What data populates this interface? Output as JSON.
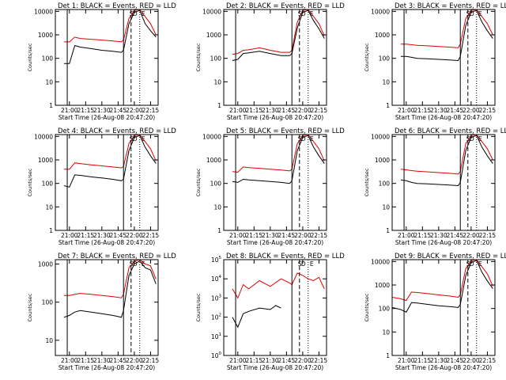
{
  "figure": {
    "title_template": "Det {n}: BLACK = Events, RED = LLD",
    "xlabel": "Start Time (26-Aug-08 20:47:20)",
    "ylabel": "Counts/sec",
    "series_colors": {
      "events": "#000000",
      "lld": "#e00000"
    },
    "marker_labels": [
      "S",
      "D",
      "E"
    ]
  },
  "chart_data": [
    {
      "type": "line",
      "det": "1",
      "title": "Det 1: BLACK = Events, RED = LLD",
      "xlabel": "Start Time (26-Aug-08 20:47:20)",
      "ylabel": "Counts/sec",
      "xticks": [
        "21:00",
        "21:15",
        "21:30",
        "21:45",
        "22:00",
        "22:15"
      ],
      "yticks": [
        "1",
        "10",
        "100",
        "1000",
        "10000"
      ],
      "yscale": "log",
      "ylim": [
        1,
        12000
      ],
      "series": [
        {
          "name": "Events",
          "color": "#000000",
          "x": [
            "20:55",
            "21:00",
            "21:05",
            "21:10",
            "21:20",
            "21:30",
            "21:40",
            "21:48",
            "21:50",
            "21:55",
            "22:00",
            "22:05",
            "22:10",
            "22:15",
            "22:20"
          ],
          "values": [
            60,
            60,
            350,
            300,
            260,
            220,
            200,
            180,
            220,
            3000,
            9000,
            11000,
            3000,
            1500,
            800
          ]
        },
        {
          "name": "LLD",
          "color": "#e00000",
          "x": [
            "20:55",
            "21:00",
            "21:05",
            "21:10",
            "21:20",
            "21:30",
            "21:40",
            "21:48",
            "21:50",
            "21:55",
            "22:00",
            "22:05",
            "22:10",
            "22:15",
            "22:20"
          ],
          "values": [
            500,
            500,
            800,
            700,
            650,
            600,
            550,
            500,
            600,
            5000,
            11000,
            12000,
            6000,
            3000,
            1000
          ]
        }
      ]
    },
    {
      "type": "line",
      "det": "2",
      "title": "Det 2: BLACK = Events, RED = LLD",
      "xlabel": "Start Time (26-Aug-08 20:47:20)",
      "ylabel": "Counts/sec",
      "xticks": [
        "21:00",
        "21:15",
        "21:30",
        "21:45",
        "22:00",
        "22:15"
      ],
      "yticks": [
        "1",
        "10",
        "100",
        "1000",
        "10000"
      ],
      "yscale": "log",
      "ylim": [
        1,
        12000
      ],
      "series": [
        {
          "name": "Events",
          "color": "#000000",
          "x": [
            "20:55",
            "21:00",
            "21:05",
            "21:10",
            "21:20",
            "21:30",
            "21:40",
            "21:48",
            "21:50",
            "21:55",
            "22:00",
            "22:05",
            "22:10",
            "22:15",
            "22:20"
          ],
          "values": [
            80,
            90,
            160,
            170,
            200,
            160,
            130,
            130,
            160,
            2000,
            9000,
            11000,
            4000,
            1800,
            700
          ]
        },
        {
          "name": "LLD",
          "color": "#e00000",
          "x": [
            "20:55",
            "21:00",
            "21:05",
            "21:10",
            "21:20",
            "21:30",
            "21:40",
            "21:48",
            "21:50",
            "21:55",
            "22:00",
            "22:05",
            "22:10",
            "22:15",
            "22:20"
          ],
          "values": [
            150,
            160,
            220,
            230,
            280,
            220,
            180,
            180,
            220,
            3500,
            11000,
            12000,
            6000,
            3000,
            900
          ]
        }
      ]
    },
    {
      "type": "line",
      "det": "3",
      "title": "Det 3: BLACK = Events, RED = LLD",
      "xlabel": "Start Time (26-Aug-08 20:47:20)",
      "ylabel": "Counts/sec",
      "xticks": [
        "21:00",
        "21:15",
        "21:30",
        "21:45",
        "22:00",
        "22:15"
      ],
      "yticks": [
        "1",
        "10",
        "100",
        "1000",
        "10000"
      ],
      "yscale": "log",
      "ylim": [
        1,
        12000
      ],
      "series": [
        {
          "name": "Events",
          "color": "#000000",
          "x": [
            "20:55",
            "21:00",
            "21:05",
            "21:10",
            "21:20",
            "21:30",
            "21:40",
            "21:48",
            "21:50",
            "21:55",
            "22:00",
            "22:05",
            "22:10",
            "22:15",
            "22:20"
          ],
          "values": [
            120,
            120,
            110,
            100,
            95,
            90,
            85,
            80,
            120,
            2500,
            9000,
            11000,
            3500,
            1500,
            700
          ]
        },
        {
          "name": "LLD",
          "color": "#e00000",
          "x": [
            "20:55",
            "21:00",
            "21:05",
            "21:10",
            "21:20",
            "21:30",
            "21:40",
            "21:48",
            "21:50",
            "21:55",
            "22:00",
            "22:05",
            "22:10",
            "22:15",
            "22:20"
          ],
          "values": [
            400,
            400,
            380,
            360,
            340,
            320,
            300,
            280,
            400,
            5000,
            11000,
            12000,
            6000,
            3000,
            1000
          ]
        }
      ]
    },
    {
      "type": "line",
      "det": "4",
      "title": "Det 4: BLACK = Events, RED = LLD",
      "xlabel": "Start Time (26-Aug-08 20:47:20)",
      "ylabel": "Counts/sec",
      "xticks": [
        "21:00",
        "21:15",
        "21:30",
        "21:45",
        "22:00",
        "22:15"
      ],
      "yticks": [
        "1",
        "10",
        "100",
        "1000",
        "10000"
      ],
      "yscale": "log",
      "ylim": [
        1,
        12000
      ],
      "series": [
        {
          "name": "Events",
          "color": "#000000",
          "x": [
            "20:55",
            "21:00",
            "21:05",
            "21:10",
            "21:20",
            "21:30",
            "21:40",
            "21:48",
            "21:50",
            "21:55",
            "22:00",
            "22:05",
            "22:10",
            "22:15",
            "22:20"
          ],
          "values": [
            80,
            70,
            230,
            220,
            190,
            170,
            150,
            130,
            150,
            2500,
            9000,
            11000,
            3500,
            1500,
            700
          ]
        },
        {
          "name": "LLD",
          "color": "#e00000",
          "x": [
            "20:55",
            "21:00",
            "21:05",
            "21:10",
            "21:20",
            "21:30",
            "21:40",
            "21:48",
            "21:50",
            "21:55",
            "22:00",
            "22:05",
            "22:10",
            "22:15",
            "22:20"
          ],
          "values": [
            400,
            400,
            750,
            700,
            620,
            560,
            500,
            460,
            520,
            5000,
            11000,
            12000,
            6000,
            3000,
            900
          ]
        }
      ]
    },
    {
      "type": "line",
      "det": "5",
      "title": "Det 5: BLACK = Events, RED = LLD",
      "xlabel": "Start Time (26-Aug-08 20:47:20)",
      "ylabel": "Counts/sec",
      "xticks": [
        "21:00",
        "21:15",
        "21:30",
        "21:45",
        "22:00",
        "22:15"
      ],
      "yticks": [
        "1",
        "10",
        "100",
        "1000",
        "10000"
      ],
      "yscale": "log",
      "ylim": [
        1,
        12000
      ],
      "series": [
        {
          "name": "Events",
          "color": "#000000",
          "x": [
            "20:55",
            "21:00",
            "21:05",
            "21:10",
            "21:20",
            "21:30",
            "21:40",
            "21:48",
            "21:50",
            "21:55",
            "22:00",
            "22:05",
            "22:10",
            "22:15",
            "22:20"
          ],
          "values": [
            120,
            110,
            150,
            140,
            130,
            120,
            110,
            100,
            130,
            2500,
            9000,
            11000,
            3500,
            1500,
            700
          ]
        },
        {
          "name": "LLD",
          "color": "#e00000",
          "x": [
            "20:55",
            "21:00",
            "21:05",
            "21:10",
            "21:20",
            "21:30",
            "21:40",
            "21:48",
            "21:50",
            "21:55",
            "22:00",
            "22:05",
            "22:10",
            "22:15",
            "22:20"
          ],
          "values": [
            320,
            300,
            500,
            470,
            440,
            400,
            370,
            340,
            400,
            5000,
            11000,
            12000,
            6000,
            3000,
            900
          ]
        }
      ]
    },
    {
      "type": "line",
      "det": "6",
      "title": "Det 6: BLACK = Events, RED = LLD",
      "xlabel": "Start Time (26-Aug-08 20:47:20)",
      "ylabel": "Counts/sec",
      "xticks": [
        "21:00",
        "21:15",
        "21:30",
        "21:45",
        "22:00",
        "22:15"
      ],
      "yticks": [
        "1",
        "10",
        "100",
        "1000",
        "10000"
      ],
      "yscale": "log",
      "ylim": [
        1,
        12000
      ],
      "series": [
        {
          "name": "Events",
          "color": "#000000",
          "x": [
            "20:55",
            "21:00",
            "21:05",
            "21:10",
            "21:20",
            "21:30",
            "21:40",
            "21:48",
            "21:50",
            "21:55",
            "22:00",
            "22:05",
            "22:10",
            "22:15",
            "22:20"
          ],
          "values": [
            140,
            130,
            110,
            100,
            95,
            90,
            85,
            80,
            110,
            2500,
            9000,
            11000,
            3500,
            1500,
            700
          ]
        },
        {
          "name": "LLD",
          "color": "#e00000",
          "x": [
            "20:55",
            "21:00",
            "21:05",
            "21:10",
            "21:20",
            "21:30",
            "21:40",
            "21:48",
            "21:50",
            "21:55",
            "22:00",
            "22:05",
            "22:10",
            "22:15",
            "22:20"
          ],
          "values": [
            400,
            380,
            350,
            330,
            310,
            290,
            270,
            250,
            320,
            5000,
            11000,
            12000,
            6000,
            3000,
            1000
          ]
        }
      ]
    },
    {
      "type": "line",
      "det": "7",
      "title": "Det 7: BLACK = Events, RED = LLD",
      "xlabel": "Start Time (26-Aug-08 20:47:20)",
      "ylabel": "Counts/sec",
      "xticks": [
        "21:00",
        "21:15",
        "21:30",
        "21:45",
        "22:00",
        "22:15"
      ],
      "yticks": [
        "10",
        "100",
        "1000"
      ],
      "yscale": "log",
      "ylim": [
        4,
        1300
      ],
      "series": [
        {
          "name": "Events",
          "color": "#000000",
          "x": [
            "20:55",
            "21:00",
            "21:05",
            "21:10",
            "21:20",
            "21:30",
            "21:40",
            "21:48",
            "21:50",
            "21:55",
            "22:00",
            "22:05",
            "22:10",
            "22:15",
            "22:20"
          ],
          "values": [
            40,
            45,
            55,
            60,
            55,
            50,
            45,
            40,
            60,
            500,
            1000,
            1200,
            800,
            700,
            300
          ]
        },
        {
          "name": "LLD",
          "color": "#e00000",
          "x": [
            "20:55",
            "21:00",
            "21:05",
            "21:10",
            "21:20",
            "21:30",
            "21:40",
            "21:48",
            "21:50",
            "21:55",
            "22:00",
            "22:05",
            "22:10",
            "22:15",
            "22:20"
          ],
          "values": [
            150,
            150,
            160,
            170,
            160,
            150,
            140,
            130,
            160,
            800,
            1200,
            1300,
            1000,
            900,
            400
          ]
        }
      ]
    },
    {
      "type": "line",
      "det": "8",
      "title": "Det 8: BLACK = Events, RED = LLD",
      "xlabel": "Start Time (26-Aug-08 20:47:20)",
      "ylabel": "Counts/sec",
      "xticks": [
        "21:00",
        "21:15",
        "21:30",
        "21:45",
        "22:00",
        "22:15"
      ],
      "yticks": [
        "10^0",
        "10^1",
        "10^2",
        "10^3",
        "10^4",
        "10^5"
      ],
      "yscale": "log",
      "ylim": [
        1,
        100000
      ],
      "series": [
        {
          "name": "Events",
          "color": "#000000",
          "x": [
            "20:55",
            "21:00",
            "21:05",
            "21:10",
            "21:20",
            "21:30",
            "21:35",
            "21:40"
          ],
          "values": [
            100,
            30,
            150,
            200,
            300,
            250,
            400,
            300
          ]
        },
        {
          "name": "LLD",
          "color": "#e00000",
          "x": [
            "20:55",
            "21:00",
            "21:05",
            "21:10",
            "21:20",
            "21:30",
            "21:40",
            "21:48",
            "21:50",
            "21:55",
            "22:00",
            "22:05",
            "22:10",
            "22:15",
            "22:20"
          ],
          "values": [
            3000,
            1000,
            5000,
            3000,
            8000,
            4000,
            10000,
            6000,
            5000,
            20000,
            15000,
            10000,
            8000,
            12000,
            3000
          ]
        }
      ]
    },
    {
      "type": "line",
      "det": "9",
      "title": "Det 9: BLACK = Events, RED = LLD",
      "xlabel": "Start Time (26-Aug-08 20:47:20)",
      "ylabel": "Counts/sec",
      "xticks": [
        "21:00",
        "21:15",
        "21:30",
        "21:45",
        "22:00",
        "22:15"
      ],
      "yticks": [
        "1",
        "10",
        "100",
        "1000",
        "10000"
      ],
      "yscale": "log",
      "ylim": [
        1,
        12000
      ],
      "series": [
        {
          "name": "Events",
          "color": "#000000",
          "x": [
            "20:47",
            "20:55",
            "21:00",
            "21:05",
            "21:10",
            "21:20",
            "21:30",
            "21:40",
            "21:48",
            "21:50",
            "21:55",
            "22:00",
            "22:05",
            "22:10",
            "22:15",
            "22:20"
          ],
          "values": [
            110,
            90,
            70,
            180,
            170,
            150,
            130,
            120,
            110,
            150,
            2500,
            9000,
            11000,
            3500,
            1500,
            700
          ]
        },
        {
          "name": "LLD",
          "color": "#e00000",
          "x": [
            "20:47",
            "20:55",
            "21:00",
            "21:05",
            "21:10",
            "21:20",
            "21:30",
            "21:40",
            "21:48",
            "21:50",
            "21:55",
            "22:00",
            "22:05",
            "22:10",
            "22:15",
            "22:20"
          ],
          "values": [
            300,
            260,
            220,
            500,
            480,
            430,
            380,
            340,
            300,
            380,
            5000,
            11000,
            12000,
            6000,
            3000,
            900
          ]
        }
      ]
    }
  ]
}
